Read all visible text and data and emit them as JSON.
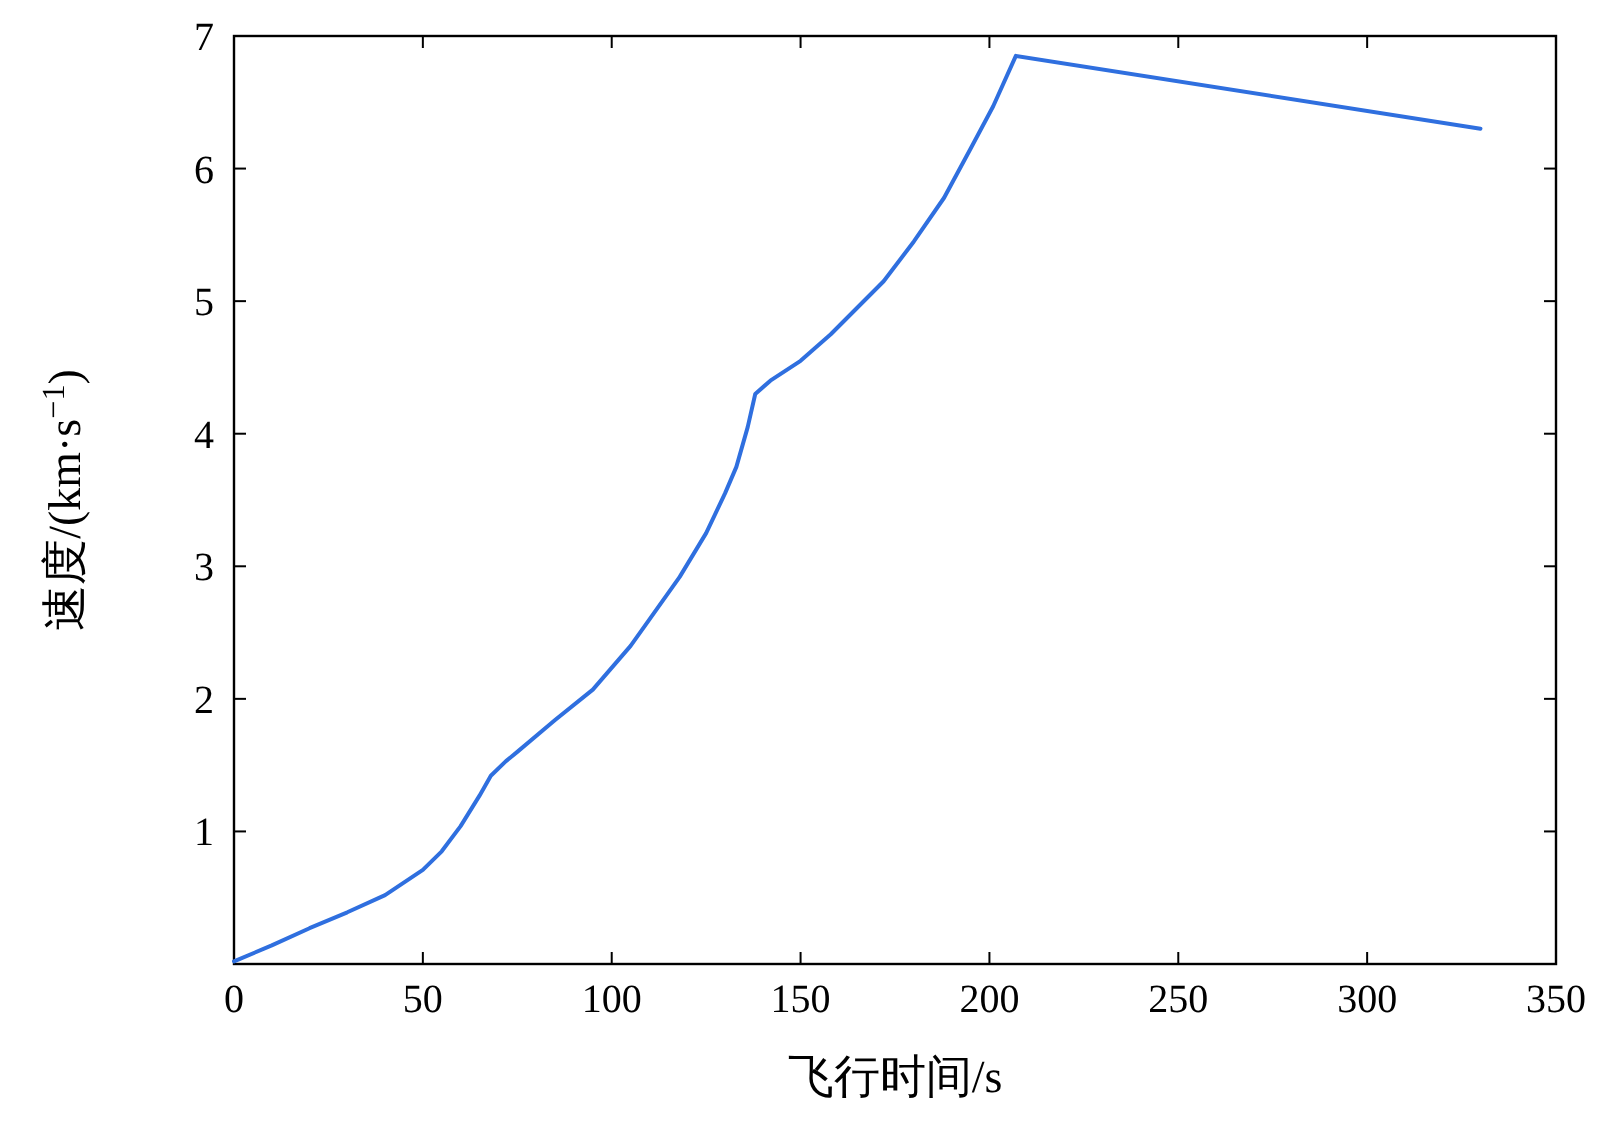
{
  "chart_data": {
    "type": "line",
    "xlabel": "飞行时间/s",
    "ylabel": "速度/(km·s$^{−1}$)",
    "xlim": [
      0,
      350
    ],
    "ylim": [
      0,
      7
    ],
    "xticks": [
      0,
      50,
      100,
      150,
      200,
      250,
      300,
      350
    ],
    "yticks": [
      {
        "value": 0,
        "label": null
      },
      1,
      2,
      3,
      4,
      5,
      6,
      7
    ],
    "grid": false,
    "series": [
      {
        "color": "#2f6fdf",
        "x": [
          0,
          10,
          20,
          30,
          40,
          50,
          55,
          60,
          65,
          68,
          72,
          75,
          85,
          95,
          105,
          110,
          118,
          125,
          130,
          133,
          136,
          138,
          142,
          150,
          158,
          165,
          172,
          180,
          188,
          195,
          201,
          207,
          330
        ],
        "values": [
          0.02,
          0.14,
          0.27,
          0.39,
          0.52,
          0.71,
          0.85,
          1.04,
          1.27,
          1.42,
          1.53,
          1.6,
          1.84,
          2.07,
          2.4,
          2.6,
          2.92,
          3.25,
          3.55,
          3.75,
          4.05,
          4.3,
          4.4,
          4.55,
          4.75,
          4.95,
          5.15,
          5.45,
          5.78,
          6.15,
          6.47,
          6.85,
          6.3
        ]
      }
    ]
  }
}
